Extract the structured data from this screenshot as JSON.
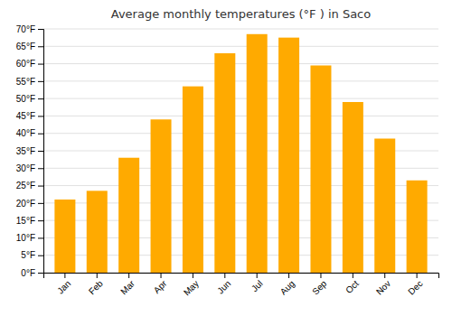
{
  "chart_data": {
    "type": "bar",
    "title": "Average monthly temperatures (°F ) in Saco",
    "categories": [
      "Jan",
      "Feb",
      "Mar",
      "Apr",
      "May",
      "Jun",
      "Jul",
      "Aug",
      "Sep",
      "Oct",
      "Nov",
      "Dec"
    ],
    "values": [
      21,
      23.5,
      33,
      44,
      53.5,
      63,
      68.5,
      67.5,
      59.5,
      49,
      38.5,
      26.5
    ],
    "color": "#FFAA00",
    "ylim": [
      0,
      70
    ],
    "yticks": [
      {
        "value": 0,
        "label": "0°F"
      },
      {
        "value": 5,
        "label": "5°F"
      },
      {
        "value": 10,
        "label": "10°F"
      },
      {
        "value": 15,
        "label": "15°F"
      },
      {
        "value": 20,
        "label": "20°F"
      },
      {
        "value": 25,
        "label": "25°F"
      },
      {
        "value": 30,
        "label": "30°F"
      },
      {
        "value": 35,
        "label": "35°F"
      },
      {
        "value": 40,
        "label": "40°F"
      },
      {
        "value": 45,
        "label": "45°F"
      },
      {
        "value": 50,
        "label": "50°F"
      },
      {
        "value": 55,
        "label": "55°F"
      },
      {
        "value": 60,
        "label": "60°F"
      },
      {
        "value": 65,
        "label": "65°F"
      },
      {
        "value": 70,
        "label": "70°F"
      }
    ],
    "grid": true
  }
}
